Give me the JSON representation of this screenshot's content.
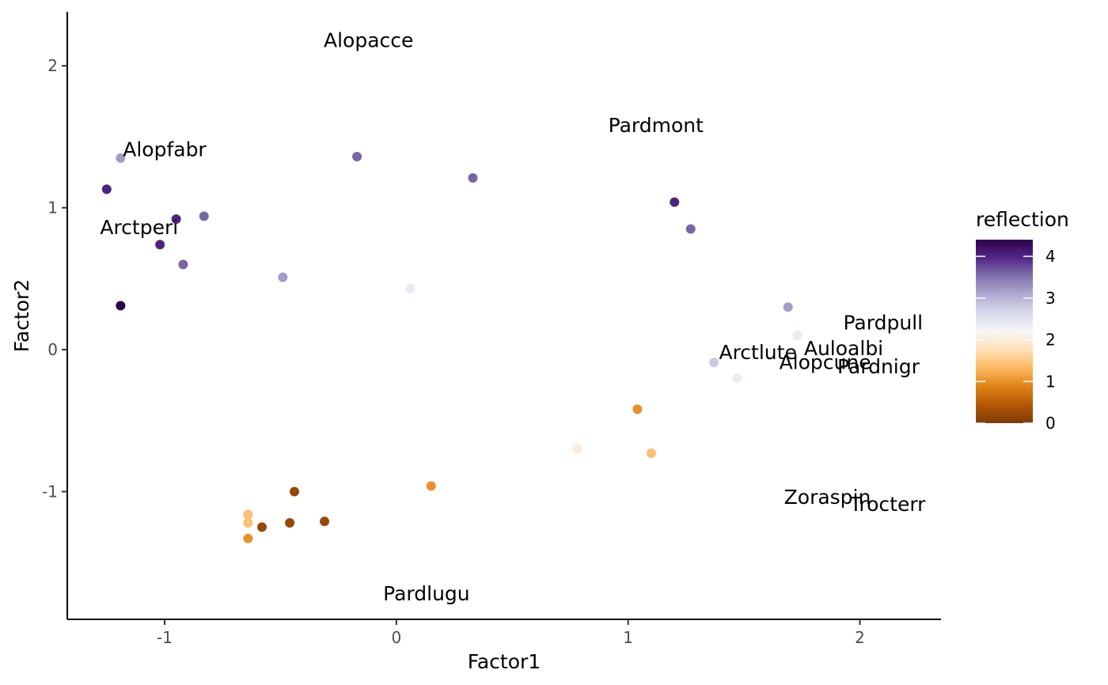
{
  "chart_data": {
    "type": "scatter",
    "xlabel": "Factor1",
    "ylabel": "Factor2",
    "xlim": [
      -1.42,
      2.35
    ],
    "ylim": [
      -1.9,
      2.38
    ],
    "x_ticks": [
      -1,
      0,
      1,
      2
    ],
    "y_ticks": [
      -1,
      0,
      1,
      2
    ],
    "x_tick_labels": [
      "-1",
      "0",
      "1",
      "2"
    ],
    "y_tick_labels": [
      "-1",
      "0",
      "1",
      "2"
    ],
    "grid": false,
    "color_variable": "reflection",
    "legend": {
      "title": "reflection",
      "position": "right",
      "range": [
        0,
        4.4
      ],
      "ticks": [
        0,
        1,
        2,
        3,
        4
      ],
      "tick_labels": [
        "0",
        "1",
        "2",
        "3",
        "4"
      ],
      "palette": [
        "#7f3b08",
        "#b35806",
        "#e08214",
        "#fdb863",
        "#fee0b6",
        "#f7f7f7",
        "#d8daeb",
        "#b2abd2",
        "#8073ac",
        "#542788",
        "#2d004b"
      ]
    },
    "points": [
      {
        "x": -1.19,
        "y": 1.35,
        "reflection": 3.2
      },
      {
        "x": -1.25,
        "y": 1.13,
        "reflection": 4.0
      },
      {
        "x": -0.95,
        "y": 0.92,
        "reflection": 4.0
      },
      {
        "x": -0.83,
        "y": 0.94,
        "reflection": 3.6
      },
      {
        "x": -1.02,
        "y": 0.74,
        "reflection": 4.0
      },
      {
        "x": -0.92,
        "y": 0.6,
        "reflection": 3.6
      },
      {
        "x": -1.19,
        "y": 0.31,
        "reflection": 4.4
      },
      {
        "x": -0.49,
        "y": 0.51,
        "reflection": 3.2
      },
      {
        "x": -0.17,
        "y": 1.36,
        "reflection": 3.6
      },
      {
        "x": 0.33,
        "y": 1.21,
        "reflection": 3.6
      },
      {
        "x": 0.06,
        "y": 0.43,
        "reflection": 2.4
      },
      {
        "x": 1.2,
        "y": 1.04,
        "reflection": 4.0
      },
      {
        "x": 1.27,
        "y": 0.85,
        "reflection": 3.6
      },
      {
        "x": 1.69,
        "y": 0.3,
        "reflection": 3.2
      },
      {
        "x": 1.73,
        "y": 0.1,
        "reflection": 2.4
      },
      {
        "x": 1.37,
        "y": -0.09,
        "reflection": 2.8
      },
      {
        "x": 1.47,
        "y": -0.2,
        "reflection": 2.4
      },
      {
        "x": 1.04,
        "y": -0.42,
        "reflection": 1.0
      },
      {
        "x": 0.78,
        "y": -0.7,
        "reflection": 2.0
      },
      {
        "x": 1.1,
        "y": -0.73,
        "reflection": 1.4
      },
      {
        "x": 0.15,
        "y": -0.96,
        "reflection": 1.0
      },
      {
        "x": -0.44,
        "y": -1.0,
        "reflection": 0.2
      },
      {
        "x": -0.64,
        "y": -1.16,
        "reflection": 1.4
      },
      {
        "x": -0.64,
        "y": -1.22,
        "reflection": 1.4
      },
      {
        "x": -0.58,
        "y": -1.25,
        "reflection": 0.2
      },
      {
        "x": -0.46,
        "y": -1.22,
        "reflection": 0.2
      },
      {
        "x": -0.31,
        "y": -1.21,
        "reflection": 0.2
      },
      {
        "x": -0.64,
        "y": -1.33,
        "reflection": 1.0
      }
    ],
    "annotations": [
      {
        "text": "Alopacce",
        "x": -0.12,
        "y": 2.18
      },
      {
        "text": "Pardmont",
        "x": 1.12,
        "y": 1.58
      },
      {
        "text": "Alopfabr",
        "x": -1.0,
        "y": 1.41
      },
      {
        "text": "Arctperi",
        "x": -1.11,
        "y": 0.86
      },
      {
        "text": "Pardpull",
        "x": 2.1,
        "y": 0.19
      },
      {
        "text": "Auloalbi",
        "x": 1.93,
        "y": 0.01
      },
      {
        "text": "Arctlute",
        "x": 1.56,
        "y": -0.02
      },
      {
        "text": "Alopcune",
        "x": 1.85,
        "y": -0.09
      },
      {
        "text": "Pardnigr",
        "x": 2.08,
        "y": -0.12
      },
      {
        "text": "Zoraspin",
        "x": 1.86,
        "y": -1.04
      },
      {
        "text": "Trocterr",
        "x": 2.12,
        "y": -1.09
      },
      {
        "text": "Pardlugu",
        "x": 0.13,
        "y": -1.72
      }
    ]
  }
}
